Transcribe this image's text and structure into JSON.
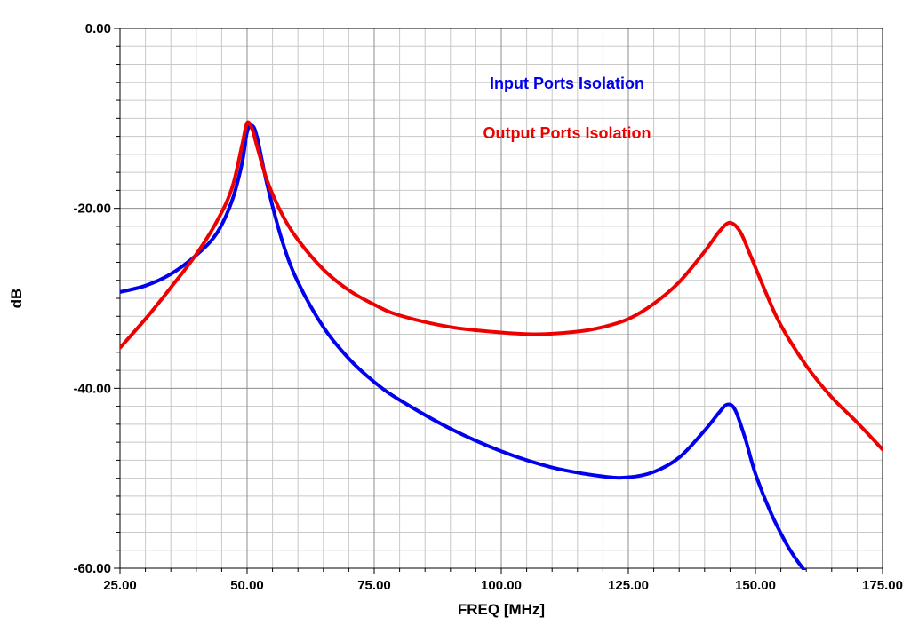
{
  "chart_data": {
    "type": "line",
    "title": "",
    "xlabel": "FREQ [MHz]",
    "ylabel": "dB",
    "xlim": [
      25,
      175
    ],
    "ylim": [
      -60,
      0
    ],
    "x_ticks": [
      25,
      50,
      75,
      100,
      125,
      150,
      175
    ],
    "x_tick_labels": [
      "25.00",
      "50.00",
      "75.00",
      "100.00",
      "125.00",
      "150.00",
      "175.00"
    ],
    "y_ticks": [
      0,
      -20,
      -40,
      -60
    ],
    "y_tick_labels": [
      "0.00",
      "-20.00",
      "-40.00",
      "-60.00"
    ],
    "grid": true,
    "legend_position": "top-center",
    "series": [
      {
        "name": "Input Ports Isolation",
        "color": "#0000ee",
        "x": [
          25,
          30,
          35,
          40,
          44,
          47,
          49,
          50,
          51,
          52,
          54,
          57,
          60,
          65,
          70,
          75,
          80,
          90,
          100,
          110,
          120,
          125,
          130,
          135,
          140,
          143,
          144.5,
          146,
          148,
          150,
          153,
          156,
          158,
          160
        ],
        "y": [
          -29.3,
          -28.6,
          -27.3,
          -25.2,
          -22.8,
          -19.2,
          -15.0,
          -11.5,
          -10.8,
          -12.2,
          -17.5,
          -23.8,
          -28.2,
          -33.2,
          -36.7,
          -39.3,
          -41.3,
          -44.5,
          -47.0,
          -48.8,
          -49.8,
          -49.9,
          -49.3,
          -47.7,
          -44.7,
          -42.6,
          -41.8,
          -42.4,
          -45.6,
          -49.5,
          -53.8,
          -57.2,
          -59.0,
          -60.5
        ]
      },
      {
        "name": "Output Ports Isolation",
        "color": "#ee0000",
        "x": [
          25,
          30,
          35,
          40,
          44,
          47,
          49,
          50,
          51,
          52,
          54,
          57,
          60,
          65,
          70,
          75,
          80,
          90,
          100,
          107,
          115,
          120,
          125,
          130,
          135,
          140,
          143,
          145,
          147,
          149,
          152,
          155,
          160,
          165,
          170,
          175
        ],
        "y": [
          -35.5,
          -32.3,
          -28.8,
          -25.1,
          -21.5,
          -17.8,
          -13.0,
          -10.5,
          -11.2,
          -13.2,
          -17.0,
          -20.8,
          -23.5,
          -26.8,
          -29.1,
          -30.7,
          -31.9,
          -33.2,
          -33.8,
          -34.0,
          -33.7,
          -33.2,
          -32.3,
          -30.6,
          -28.2,
          -24.8,
          -22.5,
          -21.6,
          -22.6,
          -25.2,
          -29.3,
          -33.0,
          -37.5,
          -41.0,
          -43.8,
          -46.8
        ]
      }
    ]
  }
}
